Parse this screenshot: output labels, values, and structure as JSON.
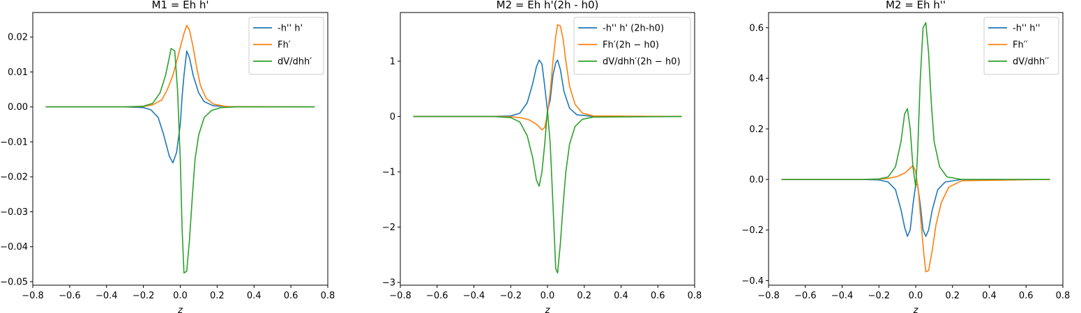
{
  "chart_data": [
    {
      "type": "line",
      "title": "M1 = Eh h'",
      "xlabel": "z",
      "ylabel": "",
      "xlim": [
        -0.8,
        0.8
      ],
      "ylim": [
        -0.051,
        0.027
      ],
      "xticks": [
        -0.8,
        -0.6,
        -0.4,
        -0.2,
        0.0,
        0.2,
        0.4,
        0.6,
        0.8
      ],
      "xtick_labels": [
        "−0.8",
        "−0.6",
        "−0.4",
        "−0.2",
        "0.0",
        "0.2",
        "0.4",
        "0.6",
        "0.8"
      ],
      "yticks": [
        -0.05,
        -0.04,
        -0.03,
        -0.02,
        -0.01,
        0.0,
        0.01,
        0.02
      ],
      "ytick_labels": [
        "−0.05",
        "−0.04",
        "−0.03",
        "−0.02",
        "−0.01",
        "0.00",
        "0.01",
        "0.02"
      ],
      "grid": false,
      "legend_position": "top-right",
      "series": [
        {
          "name": "-h'' h'",
          "color": "#1f77b4",
          "points": [
            [
              -0.73,
              0
            ],
            [
              -0.3,
              0
            ],
            [
              -0.2,
              -0.0002
            ],
            [
              -0.16,
              -0.0008
            ],
            [
              -0.12,
              -0.003
            ],
            [
              -0.09,
              -0.008
            ],
            [
              -0.06,
              -0.014
            ],
            [
              -0.04,
              -0.016
            ],
            [
              -0.02,
              -0.013
            ],
            [
              0.0,
              -0.005
            ],
            [
              0.01,
              0.003
            ],
            [
              0.02,
              0.009
            ],
            [
              0.035,
              0.016
            ],
            [
              0.05,
              0.014
            ],
            [
              0.07,
              0.009
            ],
            [
              0.1,
              0.004
            ],
            [
              0.13,
              0.0015
            ],
            [
              0.18,
              0.0003
            ],
            [
              0.3,
              0
            ],
            [
              0.73,
              0
            ]
          ]
        },
        {
          "name": "Fh′",
          "color": "#ff7f0e",
          "points": [
            [
              -0.73,
              0
            ],
            [
              -0.3,
              0
            ],
            [
              -0.2,
              0.0001
            ],
            [
              -0.15,
              0.0006
            ],
            [
              -0.1,
              0.002
            ],
            [
              -0.07,
              0.005
            ],
            [
              -0.04,
              0.009
            ],
            [
              -0.02,
              0.013
            ],
            [
              0.0,
              0.017
            ],
            [
              0.02,
              0.021
            ],
            [
              0.035,
              0.0233
            ],
            [
              0.05,
              0.022
            ],
            [
              0.07,
              0.017
            ],
            [
              0.09,
              0.011
            ],
            [
              0.11,
              0.006
            ],
            [
              0.14,
              0.0025
            ],
            [
              0.18,
              0.0008
            ],
            [
              0.25,
              0.0001
            ],
            [
              0.73,
              0
            ]
          ]
        },
        {
          "name": "dV/dhh′",
          "color": "#2ca02c",
          "points": [
            [
              -0.73,
              0
            ],
            [
              -0.3,
              0
            ],
            [
              -0.2,
              0.0002
            ],
            [
              -0.15,
              0.001
            ],
            [
              -0.11,
              0.004
            ],
            [
              -0.08,
              0.009
            ],
            [
              -0.06,
              0.014
            ],
            [
              -0.05,
              0.0167
            ],
            [
              -0.03,
              0.016
            ],
            [
              -0.015,
              0.005
            ],
            [
              0.0,
              -0.015
            ],
            [
              0.01,
              -0.035
            ],
            [
              0.02,
              -0.0475
            ],
            [
              0.035,
              -0.047
            ],
            [
              0.05,
              -0.038
            ],
            [
              0.065,
              -0.026
            ],
            [
              0.08,
              -0.015
            ],
            [
              0.1,
              -0.008
            ],
            [
              0.13,
              -0.003
            ],
            [
              0.17,
              -0.001
            ],
            [
              0.22,
              -0.0002
            ],
            [
              0.3,
              0
            ],
            [
              0.73,
              0
            ]
          ]
        }
      ]
    },
    {
      "type": "line",
      "title": "M2 = Eh h'(2h - h0)",
      "xlabel": "z",
      "ylabel": "",
      "xlim": [
        -0.8,
        0.8
      ],
      "ylim": [
        -3.05,
        1.88
      ],
      "xticks": [
        -0.8,
        -0.6,
        -0.4,
        -0.2,
        0.0,
        0.2,
        0.4,
        0.6,
        0.8
      ],
      "xtick_labels": [
        "−0.8",
        "−0.6",
        "−0.4",
        "−0.2",
        "0.0",
        "0.2",
        "0.4",
        "0.6",
        "0.8"
      ],
      "yticks": [
        -3,
        -2,
        -1,
        0,
        1
      ],
      "ytick_labels": [
        "−3",
        "−2",
        "−1",
        "0",
        "1"
      ],
      "grid": false,
      "legend_position": "top-right",
      "series": [
        {
          "name": "-h'' h' (2h-h0)",
          "color": "#1f77b4",
          "points": [
            [
              -0.73,
              0
            ],
            [
              -0.3,
              0
            ],
            [
              -0.2,
              0.01
            ],
            [
              -0.15,
              0.06
            ],
            [
              -0.11,
              0.25
            ],
            [
              -0.08,
              0.6
            ],
            [
              -0.06,
              0.9
            ],
            [
              -0.045,
              1.02
            ],
            [
              -0.03,
              0.95
            ],
            [
              -0.015,
              0.55
            ],
            [
              0.0,
              0.1
            ],
            [
              0.015,
              0.3
            ],
            [
              0.03,
              0.75
            ],
            [
              0.045,
              0.97
            ],
            [
              0.055,
              1.02
            ],
            [
              0.07,
              0.85
            ],
            [
              0.09,
              0.45
            ],
            [
              0.12,
              0.15
            ],
            [
              0.16,
              0.03
            ],
            [
              0.25,
              0
            ],
            [
              0.73,
              0
            ]
          ]
        },
        {
          "name": "Fh′(2h − h0)",
          "color": "#ff7f0e",
          "points": [
            [
              -0.73,
              0
            ],
            [
              -0.3,
              0
            ],
            [
              -0.2,
              -0.005
            ],
            [
              -0.15,
              -0.02
            ],
            [
              -0.1,
              -0.06
            ],
            [
              -0.06,
              -0.14
            ],
            [
              -0.03,
              -0.24
            ],
            [
              -0.015,
              -0.2
            ],
            [
              0.0,
              0.05
            ],
            [
              0.015,
              0.45
            ],
            [
              0.03,
              1.0
            ],
            [
              0.045,
              1.45
            ],
            [
              0.055,
              1.66
            ],
            [
              0.07,
              1.64
            ],
            [
              0.085,
              1.4
            ],
            [
              0.1,
              1.0
            ],
            [
              0.12,
              0.55
            ],
            [
              0.15,
              0.22
            ],
            [
              0.19,
              0.06
            ],
            [
              0.25,
              0.01
            ],
            [
              0.73,
              0
            ]
          ]
        },
        {
          "name": "dV/dhh′(2h − h0)",
          "color": "#2ca02c",
          "points": [
            [
              -0.73,
              0
            ],
            [
              -0.3,
              0
            ],
            [
              -0.2,
              -0.02
            ],
            [
              -0.15,
              -0.1
            ],
            [
              -0.11,
              -0.35
            ],
            [
              -0.08,
              -0.75
            ],
            [
              -0.06,
              -1.15
            ],
            [
              -0.045,
              -1.26
            ],
            [
              -0.03,
              -1.0
            ],
            [
              -0.015,
              -0.5
            ],
            [
              0.0,
              0.12
            ],
            [
              0.015,
              -0.5
            ],
            [
              0.03,
              -1.6
            ],
            [
              0.045,
              -2.75
            ],
            [
              0.055,
              -2.83
            ],
            [
              0.07,
              -2.3
            ],
            [
              0.085,
              -1.6
            ],
            [
              0.1,
              -1.0
            ],
            [
              0.12,
              -0.5
            ],
            [
              0.15,
              -0.18
            ],
            [
              0.19,
              -0.05
            ],
            [
              0.25,
              -0.01
            ],
            [
              0.73,
              0
            ]
          ]
        }
      ]
    },
    {
      "type": "line",
      "title": "M2 = Eh h''",
      "xlabel": "z",
      "ylabel": "",
      "xlim": [
        -0.8,
        0.8
      ],
      "ylim": [
        -0.418,
        0.66
      ],
      "xticks": [
        -0.8,
        -0.6,
        -0.4,
        -0.2,
        0.0,
        0.2,
        0.4,
        0.6,
        0.8
      ],
      "xtick_labels": [
        "−0.8",
        "−0.6",
        "−0.4",
        "−0.2",
        "0.0",
        "0.2",
        "0.4",
        "0.6",
        "0.8"
      ],
      "yticks": [
        -0.4,
        -0.2,
        0.0,
        0.2,
        0.4,
        0.6
      ],
      "ytick_labels": [
        "−0.4",
        "−0.2",
        "0.0",
        "0.2",
        "0.4",
        "0.6"
      ],
      "grid": false,
      "legend_position": "top-right",
      "series": [
        {
          "name": "-h'' h''",
          "color": "#1f77b4",
          "points": [
            [
              -0.73,
              0
            ],
            [
              -0.3,
              0
            ],
            [
              -0.2,
              -0.002
            ],
            [
              -0.15,
              -0.01
            ],
            [
              -0.11,
              -0.04
            ],
            [
              -0.08,
              -0.12
            ],
            [
              -0.06,
              -0.19
            ],
            [
              -0.045,
              -0.225
            ],
            [
              -0.03,
              -0.2
            ],
            [
              -0.015,
              -0.1
            ],
            [
              0.0,
              -0.02
            ],
            [
              0.01,
              -0.02
            ],
            [
              0.025,
              -0.1
            ],
            [
              0.04,
              -0.2
            ],
            [
              0.055,
              -0.225
            ],
            [
              0.07,
              -0.2
            ],
            [
              0.09,
              -0.12
            ],
            [
              0.12,
              -0.04
            ],
            [
              0.16,
              -0.01
            ],
            [
              0.25,
              0
            ],
            [
              0.73,
              0
            ]
          ]
        },
        {
          "name": "Fh′′",
          "color": "#ff7f0e",
          "points": [
            [
              -0.73,
              0
            ],
            [
              -0.3,
              0
            ],
            [
              -0.2,
              0.001
            ],
            [
              -0.15,
              0.004
            ],
            [
              -0.1,
              0.012
            ],
            [
              -0.06,
              0.025
            ],
            [
              -0.03,
              0.045
            ],
            [
              -0.015,
              0.055
            ],
            [
              0.0,
              0.03
            ],
            [
              0.015,
              -0.05
            ],
            [
              0.03,
              -0.18
            ],
            [
              0.045,
              -0.3
            ],
            [
              0.055,
              -0.365
            ],
            [
              0.07,
              -0.36
            ],
            [
              0.09,
              -0.28
            ],
            [
              0.11,
              -0.18
            ],
            [
              0.14,
              -0.09
            ],
            [
              0.18,
              -0.03
            ],
            [
              0.25,
              -0.005
            ],
            [
              0.73,
              0
            ]
          ]
        },
        {
          "name": "dV/dhh′′",
          "color": "#2ca02c",
          "points": [
            [
              -0.73,
              0
            ],
            [
              -0.3,
              0
            ],
            [
              -0.2,
              0.002
            ],
            [
              -0.15,
              0.01
            ],
            [
              -0.11,
              0.05
            ],
            [
              -0.08,
              0.15
            ],
            [
              -0.06,
              0.26
            ],
            [
              -0.045,
              0.28
            ],
            [
              -0.03,
              0.2
            ],
            [
              -0.015,
              0.05
            ],
            [
              0.0,
              -0.03
            ],
            [
              0.01,
              0.1
            ],
            [
              0.025,
              0.4
            ],
            [
              0.04,
              0.6
            ],
            [
              0.055,
              0.62
            ],
            [
              0.07,
              0.5
            ],
            [
              0.085,
              0.3
            ],
            [
              0.1,
              0.15
            ],
            [
              0.13,
              0.05
            ],
            [
              0.17,
              0.01
            ],
            [
              0.25,
              0
            ],
            [
              0.73,
              0
            ]
          ]
        }
      ]
    }
  ]
}
